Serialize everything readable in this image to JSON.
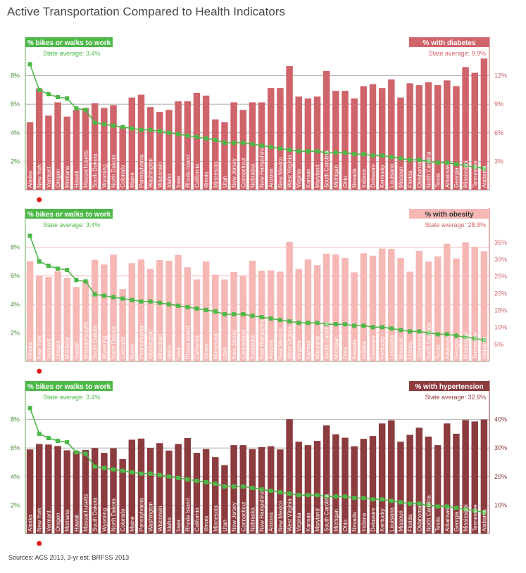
{
  "title": "Active Transportation Compared to Health Indicators",
  "source": "Sources: ACS 2013, 3-yr est; BRFSS 2013",
  "colors": {
    "green": "#4db848",
    "diabetes": "#d0646b",
    "obesity": "#f6b8b5",
    "hypertension": "#8c3b3e",
    "red_dot": "#e3171b"
  },
  "chart_data": [
    {
      "type": "bar",
      "categories": [
        "Alaska",
        "New York",
        "Vermont",
        "Oregon",
        "Montana",
        "Hawaii",
        "Massachusetts",
        "South Dakota",
        "Wyoming",
        "North Dakota",
        "Colorado",
        "Maine",
        "Pennsylvania",
        "Washington",
        "Wisconsin",
        "Idaho",
        "Iowa",
        "Rhode Island",
        "California",
        "Illinois",
        "Minnesota",
        "Utah",
        "New Jersey",
        "Connecticut",
        "Nebraska",
        "New Hampshire",
        "Arizona",
        "New Mexico",
        "West Virginia",
        "Virginia",
        "Kansas",
        "Maryland",
        "South Carolina",
        "Michigan",
        "Ohio",
        "Nevada",
        "Indiana",
        "Delaware",
        "Kentucky",
        "Louisiana",
        "Missouri",
        "Florida",
        "Oklahoma",
        "North Carolina",
        "Texas",
        "Arkansas",
        "Georgia",
        "Mississippi",
        "Tennessee",
        "Alabama"
      ],
      "series": [
        {
          "name": "% bikes or walks to work",
          "axis": "left",
          "values": [
            8.8,
            7.0,
            6.7,
            6.5,
            6.4,
            5.7,
            5.6,
            4.7,
            4.6,
            4.5,
            4.4,
            4.3,
            4.2,
            4.2,
            4.1,
            4.0,
            3.9,
            3.8,
            3.7,
            3.6,
            3.5,
            3.3,
            3.3,
            3.3,
            3.2,
            3.1,
            3.0,
            2.9,
            2.8,
            2.7,
            2.7,
            2.7,
            2.6,
            2.6,
            2.6,
            2.5,
            2.5,
            2.4,
            2.4,
            2.3,
            2.2,
            2.1,
            2.1,
            2.0,
            1.9,
            1.9,
            1.8,
            1.7,
            1.6,
            1.5
          ]
        },
        {
          "name": "% with diabetes",
          "axis": "right",
          "values": [
            7.1,
            10.6,
            7.8,
            9.2,
            7.7,
            8.4,
            8.6,
            9.1,
            8.6,
            8.9,
            6.6,
            9.7,
            10.0,
            8.7,
            8.2,
            8.4,
            9.3,
            9.3,
            10.2,
            9.9,
            7.4,
            7.1,
            9.2,
            8.4,
            9.2,
            9.2,
            10.7,
            10.7,
            13.0,
            9.8,
            9.6,
            9.8,
            12.5,
            10.4,
            10.4,
            9.6,
            10.9,
            11.1,
            10.7,
            11.6,
            9.7,
            11.2,
            11.0,
            11.3,
            11.0,
            11.5,
            10.9,
            12.9,
            12.3,
            13.8
          ]
        }
      ],
      "left_axis": {
        "ticks": [
          "2%",
          "4%",
          "6%",
          "8%"
        ],
        "ylim": [
          0,
          10
        ]
      },
      "right_axis": {
        "ticks": [
          "3%",
          "6%",
          "9%",
          "12%"
        ],
        "ylim": [
          0,
          15
        ]
      },
      "left_badge": "% bikes or walks to work",
      "left_average": "State average: 3.4%",
      "right_badge": "% with diabetes",
      "right_average": "State average: 9.9%"
    },
    {
      "type": "bar",
      "categories": [
        "Alaska",
        "New York",
        "Vermont",
        "Oregon",
        "Montana",
        "Hawaii",
        "Massachusetts",
        "South Dakota",
        "Wyoming",
        "North Dakota",
        "Colorado",
        "Maine",
        "Pennsylvania",
        "Washington",
        "Wisconsin",
        "Idaho",
        "Iowa",
        "Rhode Island",
        "California",
        "Illinois",
        "Minnesota",
        "Utah",
        "New Jersey",
        "Connecticut",
        "Nebraska",
        "New Hampshire",
        "Arizona",
        "New Mexico",
        "West Virginia",
        "Virginia",
        "Kansas",
        "Maryland",
        "South Carolina",
        "Michigan",
        "Ohio",
        "Nevada",
        "Indiana",
        "Delaware",
        "Kentucky",
        "Louisiana",
        "Missouri",
        "Florida",
        "Oklahoma",
        "North Carolina",
        "Texas",
        "Arkansas",
        "Georgia",
        "Mississippi",
        "Tennessee",
        "Alabama"
      ],
      "series": [
        {
          "name": "% bikes or walks to work",
          "axis": "left",
          "values": [
            8.8,
            7.0,
            6.7,
            6.5,
            6.4,
            5.7,
            5.6,
            4.7,
            4.6,
            4.5,
            4.4,
            4.3,
            4.2,
            4.2,
            4.1,
            4.0,
            3.9,
            3.8,
            3.7,
            3.6,
            3.5,
            3.3,
            3.3,
            3.3,
            3.2,
            3.1,
            3.0,
            2.9,
            2.8,
            2.7,
            2.7,
            2.7,
            2.6,
            2.6,
            2.6,
            2.5,
            2.5,
            2.4,
            2.4,
            2.3,
            2.2,
            2.1,
            2.1,
            2.0,
            1.9,
            1.9,
            1.8,
            1.7,
            1.6,
            1.5
          ]
        },
        {
          "name": "% with obesity",
          "axis": "right",
          "values": [
            29.5,
            25.3,
            24.8,
            26.5,
            24.6,
            21.9,
            23.7,
            29.9,
            28.5,
            31.4,
            21.3,
            28.9,
            30.0,
            27.2,
            29.8,
            29.6,
            31.3,
            27.7,
            24.1,
            29.4,
            25.5,
            24.1,
            26.3,
            25.0,
            29.6,
            26.7,
            26.8,
            26.4,
            35.2,
            27.2,
            30.0,
            28.3,
            31.7,
            31.5,
            30.4,
            26.2,
            31.8,
            31.1,
            33.2,
            33.1,
            30.4,
            26.4,
            32.5,
            29.4,
            30.9,
            34.6,
            30.3,
            35.1,
            33.7,
            32.4
          ]
        }
      ],
      "left_axis": {
        "ticks": [
          "2%",
          "4%",
          "6%",
          "8%"
        ],
        "ylim": [
          0,
          10
        ]
      },
      "right_axis": {
        "ticks": [
          "5%",
          "10%",
          "15%",
          "20%",
          "25%",
          "30%",
          "35%"
        ],
        "ylim": [
          0,
          42
        ]
      },
      "left_badge": "% bikes or walks to work",
      "left_average": "State average: 3.4%",
      "right_badge": "% with obesity",
      "right_average": "State average: 28.8%"
    },
    {
      "type": "bar",
      "categories": [
        "Alaska",
        "New York",
        "Vermont",
        "Oregon",
        "Montana",
        "Hawaii",
        "Massachusetts",
        "South Dakota",
        "Wyoming",
        "North Dakota",
        "Colorado",
        "Maine",
        "Pennsylvania",
        "Washington",
        "Wisconsin",
        "Idaho",
        "Iowa",
        "Rhode Island",
        "California",
        "Illinois",
        "Minnesota",
        "Utah",
        "New Jersey",
        "Connecticut",
        "Nebraska",
        "New Hampshire",
        "Arizona",
        "New Mexico",
        "West Virginia",
        "Virginia",
        "Kansas",
        "Maryland",
        "South Carolina",
        "Michigan",
        "Ohio",
        "Nevada",
        "Indiana",
        "Delaware",
        "Kentucky",
        "Louisiana",
        "Missouri",
        "Florida",
        "Oklahoma",
        "North Carolina",
        "Texas",
        "Arkansas",
        "Georgia",
        "Mississippi",
        "Tennessee",
        "Alabama"
      ],
      "series": [
        {
          "name": "% bikes or walks to work",
          "axis": "left",
          "values": [
            8.8,
            7.0,
            6.7,
            6.5,
            6.4,
            5.7,
            5.6,
            4.7,
            4.6,
            4.5,
            4.4,
            4.3,
            4.2,
            4.2,
            4.1,
            4.0,
            3.9,
            3.8,
            3.7,
            3.6,
            3.5,
            3.3,
            3.3,
            3.3,
            3.2,
            3.1,
            3.0,
            2.9,
            2.8,
            2.7,
            2.7,
            2.7,
            2.6,
            2.6,
            2.6,
            2.5,
            2.5,
            2.4,
            2.4,
            2.3,
            2.2,
            2.1,
            2.1,
            2.0,
            1.9,
            1.9,
            1.8,
            1.7,
            1.6,
            1.5
          ]
        },
        {
          "name": "% with hypertension",
          "axis": "right",
          "values": [
            29.5,
            31.4,
            31.2,
            30.7,
            29.2,
            28.8,
            29.3,
            30.0,
            28.3,
            29.9,
            26.1,
            32.9,
            33.3,
            30.0,
            31.7,
            29.1,
            31.4,
            33.5,
            28.3,
            29.6,
            26.8,
            24.0,
            31.0,
            31.0,
            29.6,
            30.3,
            30.6,
            29.5,
            40.1,
            32.2,
            31.0,
            32.5,
            37.9,
            34.8,
            33.6,
            30.6,
            33.2,
            34.2,
            38.6,
            39.7,
            32.2,
            34.6,
            37.1,
            34.0,
            31.0,
            38.6,
            35.0,
            39.8,
            39.3,
            40.0
          ]
        }
      ],
      "left_axis": {
        "ticks": [
          "2%",
          "4%",
          "6%",
          "8%"
        ],
        "ylim": [
          0,
          10
        ]
      },
      "right_axis": {
        "ticks": [
          "10%",
          "20%",
          "30%",
          "40%"
        ],
        "ylim": [
          0,
          50
        ]
      },
      "left_badge": "% bikes or walks to work",
      "left_average": "State average: 3.4%",
      "right_badge": "% with hypertension",
      "right_average": "State average: 32.6%"
    }
  ]
}
